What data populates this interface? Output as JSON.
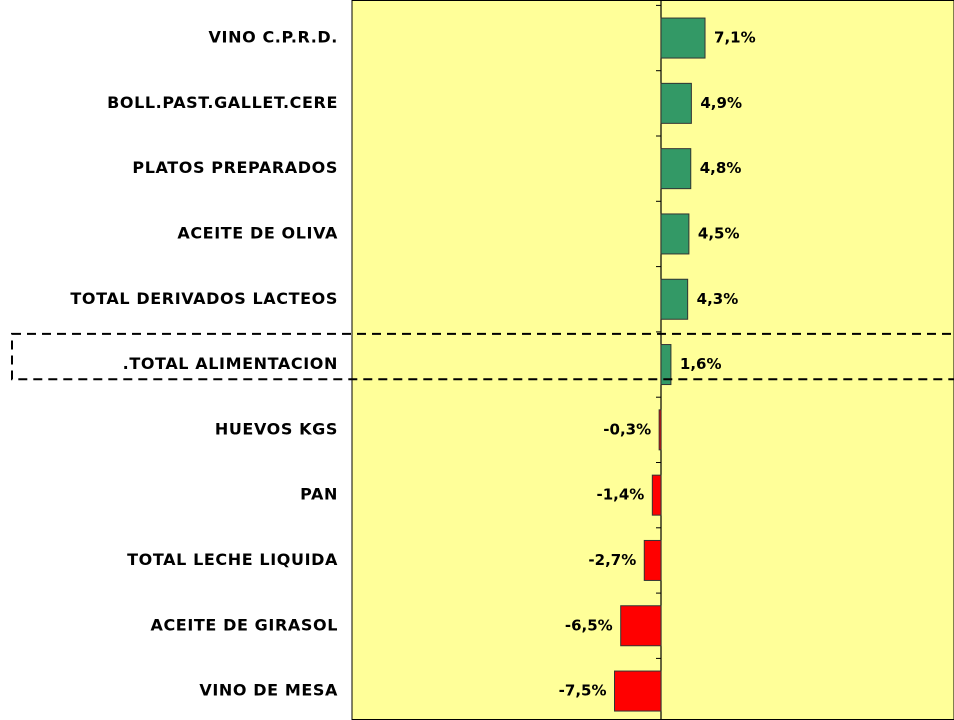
{
  "chart_data": {
    "type": "barh",
    "categories": [
      "VINO C.P.R.D.",
      "BOLL.PAST.GALLET.CERE",
      "PLATOS PREPARADOS",
      "ACEITE DE OLIVA",
      "TOTAL DERIVADOS LACTEOS",
      ".TOTAL ALIMENTACION",
      "HUEVOS KGS",
      "PAN",
      "TOTAL LECHE LIQUIDA",
      "ACEITE DE GIRASOL",
      "VINO DE MESA"
    ],
    "values": [
      7.1,
      4.9,
      4.8,
      4.5,
      4.3,
      1.6,
      -0.3,
      -1.4,
      -2.7,
      -6.5,
      -7.5
    ],
    "value_labels": [
      "7,1%",
      "4,9%",
      "4,8%",
      "4,5%",
      "4,3%",
      "1,6%",
      "-0,3%",
      "-1,4%",
      "-2,7%",
      "-6,5%",
      "-7,5%"
    ],
    "colors": [
      "#339966",
      "#339966",
      "#339966",
      "#339966",
      "#339966",
      "#339966",
      "#ff0000",
      "#ff0000",
      "#ff0000",
      "#ff0000",
      "#ff0000"
    ],
    "xlim": [
      -50,
      50
    ],
    "highlight": 5,
    "background": "#ffff99"
  }
}
